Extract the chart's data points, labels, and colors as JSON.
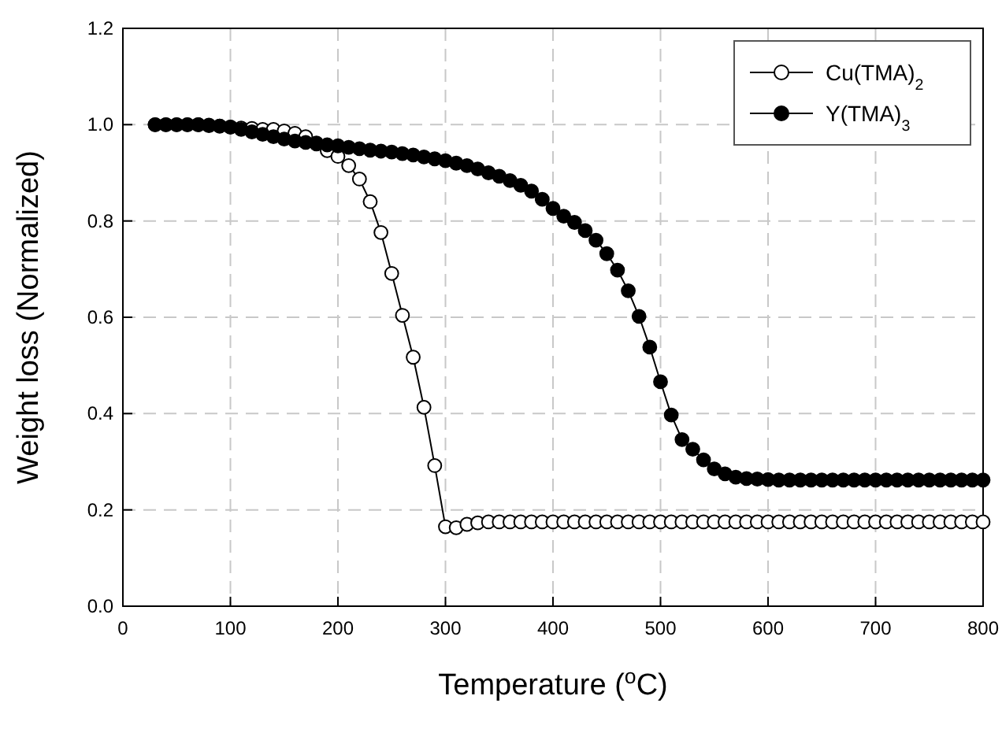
{
  "chart_data": {
    "type": "line",
    "xlabel": "Temperature ($^{o}$C)",
    "ylabel": "Weight loss (Normalized)",
    "x": [
      30,
      40,
      50,
      60,
      70,
      80,
      90,
      100,
      110,
      120,
      130,
      140,
      150,
      160,
      170,
      180,
      190,
      200,
      210,
      220,
      230,
      240,
      250,
      260,
      270,
      280,
      290,
      300,
      310,
      320,
      330,
      340,
      350,
      360,
      370,
      380,
      390,
      400,
      410,
      420,
      430,
      440,
      450,
      460,
      470,
      480,
      490,
      500,
      510,
      520,
      530,
      540,
      550,
      560,
      570,
      580,
      590,
      600,
      610,
      620,
      630,
      640,
      650,
      660,
      670,
      680,
      690,
      700,
      710,
      720,
      730,
      740,
      750,
      760,
      770,
      780,
      790,
      800
    ],
    "series": [
      {
        "name": "Cu(TMA)$_{2}$",
        "color": "#ffffff",
        "values": [
          1.0,
          1.0,
          1.0,
          1.0,
          1.0,
          0.998,
          0.997,
          0.995,
          0.993,
          0.992,
          0.99,
          0.99,
          0.987,
          0.982,
          0.975,
          0.962,
          0.946,
          0.934,
          0.915,
          0.887,
          0.84,
          0.776,
          0.691,
          0.604,
          0.517,
          0.413,
          0.292,
          0.165,
          0.163,
          0.17,
          0.173,
          0.175,
          0.175,
          0.175,
          0.175,
          0.175,
          0.175,
          0.175,
          0.175,
          0.175,
          0.175,
          0.175,
          0.175,
          0.175,
          0.175,
          0.175,
          0.175,
          0.175,
          0.175,
          0.175,
          0.175,
          0.175,
          0.175,
          0.175,
          0.175,
          0.175,
          0.175,
          0.175,
          0.175,
          0.175,
          0.175,
          0.175,
          0.175,
          0.175,
          0.175,
          0.175,
          0.175,
          0.175,
          0.175,
          0.175,
          0.175,
          0.175,
          0.175,
          0.175,
          0.175,
          0.175,
          0.175,
          0.175
        ]
      },
      {
        "name": "Y(TMA)$_{3}$",
        "color": "#000000",
        "values": [
          1.0,
          1.0,
          1.0,
          1.0,
          1.0,
          0.999,
          0.997,
          0.995,
          0.99,
          0.985,
          0.98,
          0.975,
          0.97,
          0.966,
          0.963,
          0.96,
          0.958,
          0.956,
          0.953,
          0.95,
          0.947,
          0.945,
          0.943,
          0.94,
          0.937,
          0.933,
          0.929,
          0.925,
          0.92,
          0.915,
          0.908,
          0.9,
          0.893,
          0.884,
          0.874,
          0.862,
          0.845,
          0.826,
          0.81,
          0.797,
          0.78,
          0.76,
          0.732,
          0.698,
          0.655,
          0.602,
          0.538,
          0.466,
          0.397,
          0.346,
          0.326,
          0.304,
          0.285,
          0.275,
          0.268,
          0.265,
          0.264,
          0.263,
          0.262,
          0.262,
          0.262,
          0.262,
          0.262,
          0.262,
          0.262,
          0.262,
          0.262,
          0.262,
          0.262,
          0.262,
          0.262,
          0.262,
          0.262,
          0.262,
          0.262,
          0.262,
          0.262,
          0.262
        ]
      }
    ],
    "xlim": [
      0,
      800
    ],
    "xticks": [
      0,
      100,
      200,
      300,
      400,
      500,
      600,
      700,
      800
    ],
    "ylim": [
      0,
      1.2
    ],
    "yticks": [
      {
        "value": 0,
        "label": "0.0"
      },
      {
        "value": 0.2,
        "label": "0.2"
      },
      {
        "value": 0.4,
        "label": "0.4"
      },
      {
        "value": 0.6,
        "label": "0.6"
      },
      {
        "value": 0.8,
        "label": "0.8"
      },
      {
        "value": 1.0,
        "label": "1.0"
      },
      {
        "value": 1.2,
        "label": "1.2"
      }
    ],
    "grid": true,
    "legend": "top right",
    "marker": "circle",
    "line_style": "solid"
  }
}
